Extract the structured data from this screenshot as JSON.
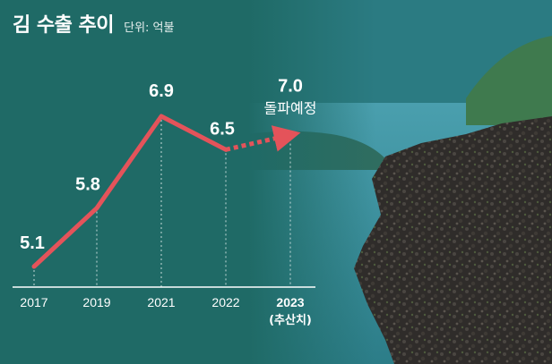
{
  "title": "김 수출 추이",
  "unit": "단위: 억불",
  "colors": {
    "line": "#e4535a",
    "text": "#ffffff",
    "background": "#1e6663"
  },
  "chart_data": {
    "type": "line",
    "title": "김 수출 추이",
    "unit": "단위: 억불",
    "categories": [
      "2017",
      "2019",
      "2021",
      "2022",
      "2023"
    ],
    "category_sublabels": [
      "",
      "",
      "",
      "",
      "(추산치)"
    ],
    "values": [
      5.1,
      5.8,
      6.9,
      6.5,
      7.0
    ],
    "value_labels": [
      "5.1",
      "5.8",
      "6.9",
      "6.5",
      "7.0"
    ],
    "projected_from_index": 3,
    "annotation": {
      "index": 4,
      "text": "돌파예정"
    },
    "gridlines": "vertical-dotted"
  }
}
